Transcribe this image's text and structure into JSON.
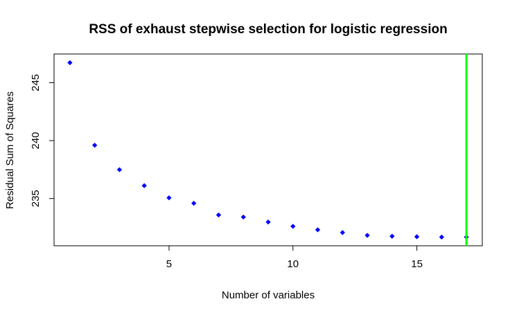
{
  "chart_data": {
    "type": "scatter",
    "title": "RSS of exhaust stepwise selection for logistic regression",
    "xlabel": "Number of variables",
    "ylabel": "Residual Sum of Squares",
    "xlim": [
      0.36,
      17.64
    ],
    "ylim": [
      230.92,
      247.48
    ],
    "xticks": [
      5,
      10,
      15
    ],
    "yticks": [
      235,
      240,
      245
    ],
    "grid": false,
    "point_color": "#0000ff",
    "series": [
      {
        "x": [
          1,
          2,
          3,
          4,
          5,
          6,
          7,
          8,
          9,
          10,
          11,
          12,
          13,
          14,
          15,
          16,
          17
        ],
        "values": [
          246.73,
          239.6,
          237.49,
          236.11,
          235.06,
          234.59,
          233.58,
          233.4,
          232.97,
          232.6,
          232.3,
          232.06,
          231.82,
          231.74,
          231.7,
          231.67,
          231.67
        ]
      }
    ],
    "vline": {
      "x": 17,
      "color": "#00ff00"
    }
  }
}
